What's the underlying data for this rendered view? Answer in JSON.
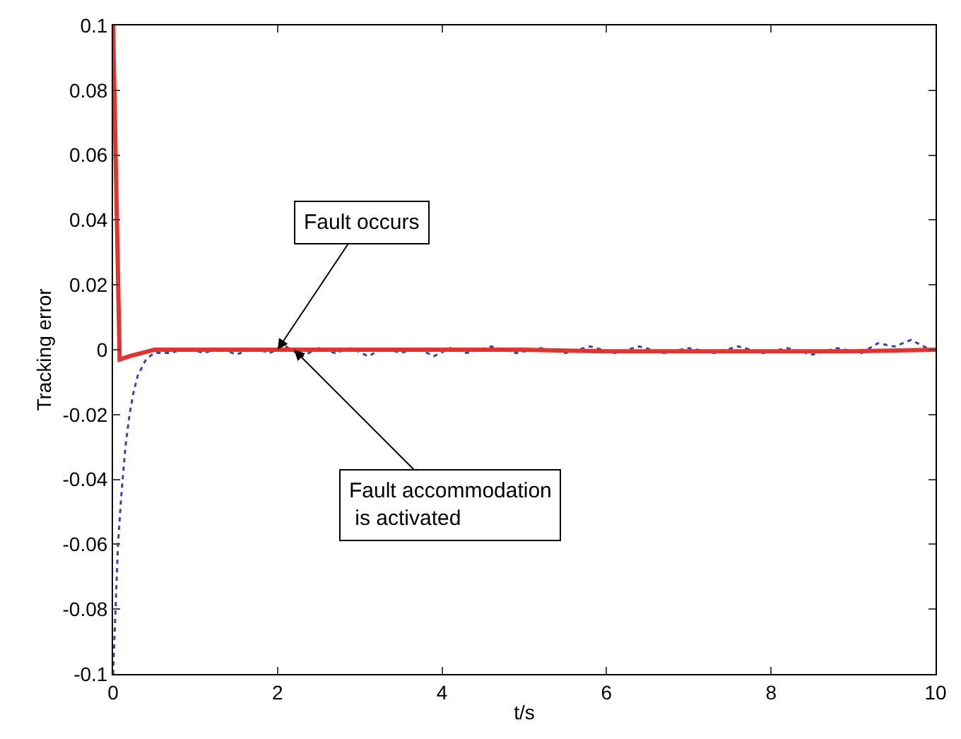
{
  "chart_data": {
    "type": "line",
    "xlabel": "t/s",
    "ylabel": "Tracking error",
    "xlim": [
      0,
      10
    ],
    "ylim": [
      -0.1,
      0.1
    ],
    "xticks": [
      0,
      2,
      4,
      6,
      8,
      10
    ],
    "yticks": [
      -0.1,
      -0.08,
      -0.06,
      -0.04,
      -0.02,
      0,
      0.02,
      0.04,
      0.06,
      0.08,
      0.1
    ],
    "legend": false,
    "series": [
      {
        "color": "#3344bb",
        "line_style": "dotted",
        "x": [
          0,
          0.03,
          0.06,
          0.1,
          0.15,
          0.2,
          0.25,
          0.3,
          0.4,
          0.5,
          0.7,
          0.9,
          1.1,
          1.3,
          1.5,
          1.7,
          1.9,
          2.1,
          2.3,
          2.5,
          2.7,
          2.9,
          3.1,
          3.3,
          3.5,
          3.7,
          3.9,
          4.1,
          4.3,
          4.6,
          4.9,
          5.2,
          5.5,
          5.8,
          6.1,
          6.4,
          6.7,
          7.0,
          7.3,
          7.6,
          7.9,
          8.2,
          8.5,
          8.8,
          9.1,
          9.3,
          9.5,
          9.7,
          9.9,
          10
        ],
        "values": [
          -0.1,
          -0.08,
          -0.06,
          -0.045,
          -0.03,
          -0.02,
          -0.013,
          -0.008,
          -0.003,
          -0.001,
          -0.001,
          0.0005,
          -0.001,
          0.0005,
          -0.0015,
          0.0005,
          -0.001,
          0.001,
          -0.002,
          0.0005,
          -0.001,
          0.0005,
          -0.002,
          0.0005,
          -0.001,
          0.0005,
          -0.002,
          0.0005,
          -0.001,
          0.001,
          -0.001,
          0.0005,
          -0.001,
          0.001,
          -0.001,
          0.001,
          -0.001,
          0.0005,
          -0.001,
          0.001,
          -0.001,
          0.0005,
          -0.0015,
          0.0005,
          -0.001,
          0.002,
          0.001,
          0.003,
          0.0005,
          0
        ]
      },
      {
        "color": "#e8312a",
        "line_style": "solid",
        "x": [
          0,
          0.08,
          0.2,
          0.35,
          0.5,
          1,
          2,
          3,
          4,
          5,
          6,
          7,
          8,
          9,
          10
        ],
        "values": [
          0.1,
          -0.003,
          -0.002,
          -0.001,
          0,
          0,
          0,
          0,
          0,
          0,
          -0.0005,
          -0.0005,
          -0.0005,
          -0.0005,
          0
        ]
      }
    ],
    "annotations": [
      {
        "text": "Fault occurs",
        "x": 2,
        "y": 0
      },
      {
        "text": "Fault accommodation\n is activated",
        "x": 2.2,
        "y": 0
      }
    ]
  }
}
